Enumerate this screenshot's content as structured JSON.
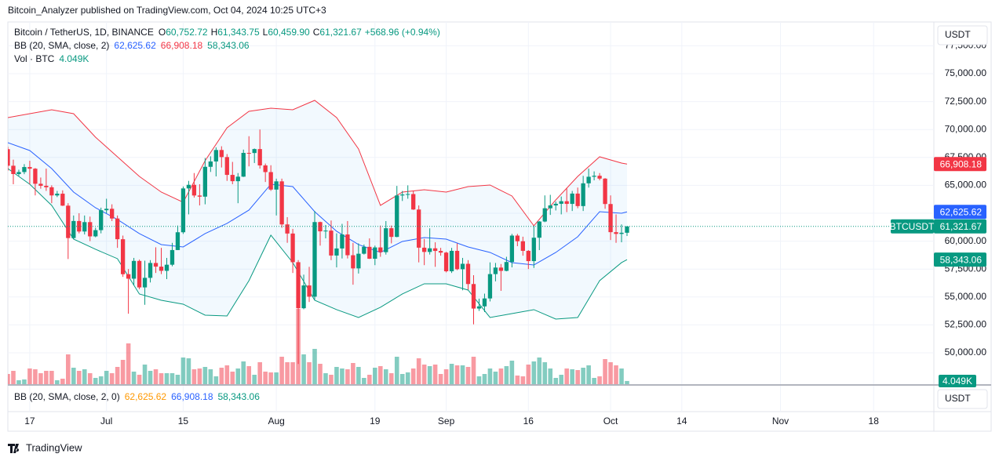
{
  "header": "Bitcoin_Analyzer published on TradingView.com, Oct 04, 2024 10:25 UTC+3",
  "footer": "TradingView",
  "buttons": [
    "USDT",
    "USDT"
  ],
  "chart_data": {
    "type": "candlestick",
    "symbol_tag": "BTCUSDT",
    "legend": {
      "symbol": "Bitcoin / TetherUS, 1D, BINANCE",
      "ohlc": [
        [
          "O",
          "60,752.72"
        ],
        [
          "H",
          "61,343.75"
        ],
        [
          "L",
          "60,459.90"
        ],
        [
          "C",
          "61,321.67"
        ]
      ],
      "change": "+568.96 (+0.94%)",
      "bb": {
        "title": "BB (20, SMA, close, 2)",
        "values": [
          "62,625.62",
          "66,908.18",
          "58,343.06"
        ]
      },
      "vol": {
        "title": "Vol · BTC",
        "value": "4.049K"
      }
    },
    "x": [
      "2024-06-13",
      "2024-06-14",
      "2024-06-15",
      "2024-06-16",
      "2024-06-17",
      "2024-06-18",
      "2024-06-19",
      "2024-06-20",
      "2024-06-21",
      "2024-06-22",
      "2024-06-23",
      "2024-06-24",
      "2024-06-25",
      "2024-06-26",
      "2024-06-27",
      "2024-06-28",
      "2024-06-29",
      "2024-06-30",
      "2024-07-01",
      "2024-07-02",
      "2024-07-03",
      "2024-07-04",
      "2024-07-05",
      "2024-07-06",
      "2024-07-07",
      "2024-07-08",
      "2024-07-09",
      "2024-07-10",
      "2024-07-11",
      "2024-07-12",
      "2024-07-13",
      "2024-07-14",
      "2024-07-15",
      "2024-07-16",
      "2024-07-17",
      "2024-07-18",
      "2024-07-19",
      "2024-07-20",
      "2024-07-21",
      "2024-07-22",
      "2024-07-23",
      "2024-07-24",
      "2024-07-25",
      "2024-07-26",
      "2024-07-27",
      "2024-07-28",
      "2024-07-29",
      "2024-07-30",
      "2024-07-31",
      "2024-08-01",
      "2024-08-02",
      "2024-08-03",
      "2024-08-04",
      "2024-08-05",
      "2024-08-06",
      "2024-08-07",
      "2024-08-08",
      "2024-08-09",
      "2024-08-10",
      "2024-08-11",
      "2024-08-12",
      "2024-08-13",
      "2024-08-14",
      "2024-08-15",
      "2024-08-16",
      "2024-08-17",
      "2024-08-18",
      "2024-08-19",
      "2024-08-20",
      "2024-08-21",
      "2024-08-22",
      "2024-08-23",
      "2024-08-24",
      "2024-08-25",
      "2024-08-26",
      "2024-08-27",
      "2024-08-28",
      "2024-08-29",
      "2024-08-30",
      "2024-08-31",
      "2024-09-01",
      "2024-09-02",
      "2024-09-03",
      "2024-09-04",
      "2024-09-05",
      "2024-09-06",
      "2024-09-07",
      "2024-09-08",
      "2024-09-09",
      "2024-09-10",
      "2024-09-11",
      "2024-09-12",
      "2024-09-13",
      "2024-09-14",
      "2024-09-15",
      "2024-09-16",
      "2024-09-17",
      "2024-09-18",
      "2024-09-19",
      "2024-09-20",
      "2024-09-21",
      "2024-09-22",
      "2024-09-23",
      "2024-09-24",
      "2024-09-25",
      "2024-09-26",
      "2024-09-27",
      "2024-09-28",
      "2024-09-29",
      "2024-09-30",
      "2024-10-01",
      "2024-10-02",
      "2024-10-03",
      "2024-10-04"
    ],
    "open": [
      68241,
      66756,
      66011,
      66191,
      66639,
      66490,
      65140,
      64960,
      64828,
      64096,
      64252,
      63180,
      60277,
      61806,
      60864,
      61706,
      60428,
      60987,
      62772,
      62900,
      62029,
      60173,
      57039,
      56639,
      58230,
      55857,
      56714,
      58046,
      57718,
      57342,
      57889,
      59204,
      60797,
      64724,
      65047,
      64089,
      63987,
      66660,
      67139,
      68166,
      67532,
      65936,
      65372,
      65777,
      67907,
      67896,
      68249,
      66784,
      66188,
      64620,
      65357,
      61499,
      60683,
      58116,
      53991,
      56034,
      55027,
      61710,
      60880,
      60945,
      58712,
      59346,
      60600,
      58739,
      57560,
      58874,
      59491,
      58427,
      59438,
      59013,
      61157,
      60381,
      64094,
      64178,
      64220,
      62834,
      59416,
      59034,
      59359,
      59123,
      58974,
      57302,
      59132,
      57487,
      57971,
      56160,
      53962,
      54160,
      54869,
      57050,
      57635,
      57339,
      58132,
      60499,
      59993,
      59132,
      58213,
      60309,
      61759,
      62947,
      63201,
      63348,
      63578,
      63339,
      64262,
      63143,
      65181,
      65769,
      65858,
      65602,
      63327,
      60805,
      60649,
      60752.72
    ],
    "high": [
      68450,
      67300,
      66400,
      66900,
      67200,
      66550,
      65700,
      66500,
      65000,
      64500,
      64550,
      63400,
      62300,
      62500,
      62300,
      62200,
      61200,
      63000,
      63800,
      63300,
      62300,
      60500,
      57500,
      58500,
      58350,
      58250,
      58300,
      59450,
      59400,
      58500,
      59850,
      61400,
      64900,
      65400,
      66100,
      65100,
      67450,
      67600,
      68400,
      68500,
      67800,
      67100,
      66100,
      68200,
      69400,
      68300,
      70000,
      66950,
      66800,
      65600,
      65600,
      62150,
      61100,
      58300,
      57000,
      57700,
      62700,
      61750,
      61450,
      61850,
      60700,
      61550,
      61800,
      59850,
      59800,
      59700,
      60250,
      59600,
      61400,
      61800,
      61400,
      64950,
      64500,
      65000,
      64500,
      63200,
      60200,
      61150,
      59900,
      59400,
      59050,
      59400,
      59800,
      58500,
      58300,
      56950,
      54850,
      55300,
      58100,
      58050,
      57950,
      58600,
      60650,
      60650,
      60400,
      59200,
      61350,
      61800,
      64100,
      64150,
      63550,
      64000,
      64750,
      64500,
      64800,
      65850,
      66500,
      66250,
      66100,
      65650,
      64100,
      62400,
      61500,
      61343.75
    ],
    "low": [
      66300,
      65100,
      65850,
      66000,
      65100,
      64100,
      64700,
      64500,
      63400,
      63950,
      63150,
      58400,
      60200,
      60700,
      60600,
      60000,
      60350,
      60700,
      62500,
      61800,
      59400,
      56800,
      53500,
      56050,
      55700,
      54300,
      56300,
      57150,
      57050,
      56600,
      57750,
      59200,
      60650,
      62400,
      63900,
      63200,
      63300,
      66200,
      65800,
      66600,
      65400,
      65100,
      63400,
      65750,
      66700,
      67000,
      66500,
      65300,
      64500,
      62300,
      61200,
      59850,
      57150,
      49000,
      53900,
      54550,
      54750,
      59600,
      60250,
      58300,
      57650,
      58450,
      58450,
      56100,
      57100,
      58800,
      58400,
      57850,
      58600,
      58800,
      59800,
      60350,
      63600,
      63800,
      62800,
      58100,
      57850,
      58800,
      57700,
      58700,
      57200,
      57150,
      57400,
      55600,
      55650,
      52550,
      53750,
      53650,
      54600,
      56400,
      55550,
      57300,
      57650,
      59550,
      58700,
      57500,
      57600,
      59200,
      61700,
      62350,
      62750,
      62400,
      62600,
      62700,
      62950,
      62700,
      64800,
      65450,
      65450,
      62900,
      60100,
      59850,
      59900,
      60459.9
    ],
    "close": [
      66756,
      66011,
      66191,
      66639,
      66490,
      65140,
      64960,
      64828,
      64096,
      64252,
      63180,
      60277,
      61806,
      60864,
      61706,
      60428,
      60987,
      62772,
      62900,
      62029,
      60173,
      57039,
      56639,
      58230,
      55857,
      56714,
      58046,
      57718,
      57342,
      57889,
      59204,
      60797,
      64724,
      65047,
      64089,
      63987,
      66660,
      67139,
      68166,
      67532,
      65936,
      65372,
      65777,
      67907,
      67896,
      68249,
      66784,
      66188,
      64620,
      65357,
      61499,
      60683,
      58116,
      53991,
      56034,
      55027,
      61710,
      60880,
      60945,
      58712,
      59346,
      60600,
      58739,
      57560,
      58874,
      59491,
      58427,
      59438,
      59013,
      61157,
      60381,
      64094,
      64178,
      64220,
      62834,
      59416,
      59034,
      59359,
      59123,
      58974,
      57302,
      59132,
      57487,
      57971,
      56160,
      53962,
      54160,
      54869,
      57050,
      57635,
      57339,
      58132,
      60499,
      59993,
      59132,
      58213,
      60309,
      61759,
      62947,
      63201,
      63348,
      63578,
      63339,
      64262,
      63143,
      65181,
      65769,
      65858,
      65602,
      63327,
      60805,
      60649,
      60752.72,
      61321.67
    ],
    "up_color": "#089981",
    "down_color": "#f23645",
    "xlim": [
      "2024-06-13",
      "2024-11-29"
    ],
    "xticks": [
      {
        "value": "2024-06-17",
        "label": "17"
      },
      {
        "value": "2024-07-01",
        "label": "Jul"
      },
      {
        "value": "2024-07-15",
        "label": "15"
      },
      {
        "value": "2024-08-01",
        "label": "Aug"
      },
      {
        "value": "2024-08-19",
        "label": "19"
      },
      {
        "value": "2024-09-01",
        "label": "Sep"
      },
      {
        "value": "2024-09-16",
        "label": "16"
      },
      {
        "value": "2024-10-01",
        "label": "Oct"
      },
      {
        "value": "2024-10-14",
        "label": "14"
      },
      {
        "value": "2024-11-01",
        "label": "Nov"
      },
      {
        "value": "2024-11-18",
        "label": "18"
      }
    ],
    "ylim": [
      47190,
      79635
    ],
    "yticks": [
      {
        "value": 50000,
        "label": "50,000.00"
      },
      {
        "value": 52500,
        "label": "52,500.00"
      },
      {
        "value": 55000,
        "label": "55,000.00"
      },
      {
        "value": 57500,
        "label": "57,500.00"
      },
      {
        "value": 60000,
        "label": "60,000.00"
      },
      {
        "value": 62500,
        "label": "62,500.00"
      },
      {
        "value": 65000,
        "label": "65,000.00"
      },
      {
        "value": 67500,
        "label": "67,500.00"
      },
      {
        "value": 70000,
        "label": "70,000.00"
      },
      {
        "value": 72500,
        "label": "72,500.00"
      },
      {
        "value": 75000,
        "label": "75,000.00"
      },
      {
        "value": 77500,
        "label": "77,500.00"
      }
    ],
    "grid": true,
    "volume": {
      "values": [
        13,
        17,
        5,
        6,
        20,
        19,
        14,
        17,
        17,
        5,
        7,
        38,
        21,
        17,
        19,
        14,
        8,
        10,
        17,
        14,
        22,
        31,
        52,
        16,
        12,
        25,
        17,
        19,
        14,
        14,
        14,
        12,
        34,
        33,
        19,
        20,
        22,
        19,
        10,
        21,
        24,
        16,
        20,
        29,
        23,
        12,
        28,
        16,
        15,
        15,
        35,
        28,
        28,
        96,
        38,
        28,
        45,
        26,
        14,
        12,
        22,
        20,
        19,
        27,
        22,
        8,
        12,
        21,
        23,
        19,
        14,
        35,
        13,
        15,
        20,
        33,
        25,
        23,
        25,
        13,
        19,
        26,
        24,
        24,
        22,
        35,
        10,
        13,
        20,
        16,
        20,
        23,
        30,
        11,
        10,
        25,
        29,
        34,
        28,
        20,
        8,
        12,
        20,
        19,
        18,
        21,
        24,
        8,
        10,
        32,
        28,
        24,
        20,
        4.049
      ],
      "ylim": [
        0,
        120
      ],
      "tag": {
        "value": 4.049,
        "label": "4.049K"
      }
    },
    "bands": {
      "x": [
        "2024-06-13",
        "2024-06-17",
        "2024-06-21",
        "2024-06-25",
        "2024-06-29",
        "2024-07-03",
        "2024-07-07",
        "2024-07-11",
        "2024-07-15",
        "2024-07-19",
        "2024-07-23",
        "2024-07-27",
        "2024-07-31",
        "2024-08-04",
        "2024-08-08",
        "2024-08-12",
        "2024-08-16",
        "2024-08-20",
        "2024-08-24",
        "2024-08-28",
        "2024-09-01",
        "2024-09-05",
        "2024-09-09",
        "2024-09-13",
        "2024-09-17",
        "2024-09-21",
        "2024-09-25",
        "2024-09-29",
        "2024-10-03",
        "2024-10-04"
      ],
      "fill": "#2196f3",
      "series": [
        {
          "color": "#2962ff",
          "values": [
            68821,
            68118,
            66503,
            64397,
            62993,
            61939,
            60675,
            59692,
            59481,
            60675,
            61588,
            62782,
            65099,
            64888,
            62641,
            60886,
            59692,
            58990,
            59973,
            60324,
            60184,
            59481,
            58990,
            58077,
            57866,
            58990,
            60394,
            62641,
            62501,
            62625.62
          ]
        },
        {
          "color": "#f23645",
          "values": [
            71068,
            71419,
            71770,
            71419,
            69312,
            67557,
            65801,
            64397,
            63484,
            67206,
            70155,
            71629,
            71910,
            71770,
            72613,
            71068,
            68259,
            63203,
            64397,
            64607,
            64397,
            64888,
            65029,
            64046,
            61377,
            63695,
            65801,
            67557,
            66995,
            66908.18
          ]
        },
        {
          "color": "#089981",
          "values": [
            66503,
            65099,
            63203,
            60184,
            59271,
            58429,
            55269,
            54707,
            54356,
            53373,
            53302,
            56462,
            60535,
            58077,
            54707,
            53864,
            53162,
            54075,
            55269,
            56181,
            56181,
            55620,
            53162,
            53513,
            53864,
            53021,
            53162,
            56462,
            58077,
            58343.06
          ]
        }
      ]
    },
    "price_tags": [
      {
        "value": 66908.18,
        "label": "66,908.18",
        "color": "#f23645"
      },
      {
        "value": 62625.62,
        "label": "62,625.62",
        "color": "#2962ff"
      },
      {
        "value": 61321.67,
        "label": "61,321.67",
        "color": "#089981"
      },
      {
        "value": 58343.06,
        "label": "58,343.06",
        "color": "#089981"
      }
    ],
    "lower_pane": {
      "title": "BB (20, SMA, close, 2, 0)",
      "values": [
        "62,625.62",
        "66,908.18",
        "58,343.06"
      ],
      "colors": [
        "#ff9800",
        "#2962ff",
        "#089981"
      ]
    }
  }
}
